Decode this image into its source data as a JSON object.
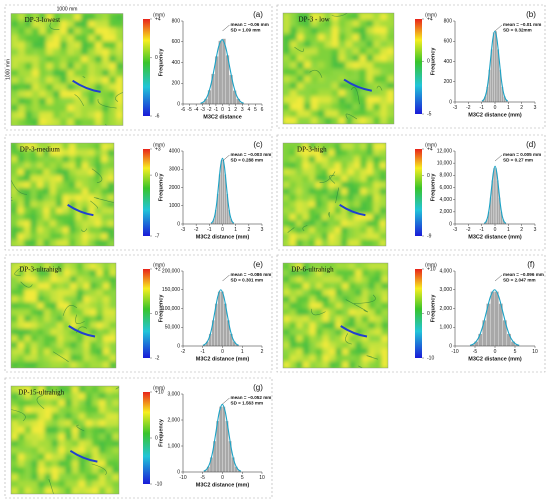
{
  "chart_data": [
    {
      "type": "histogram",
      "panel_label": "(a)",
      "map_label": "DP-3-lowest",
      "map_width_label": "1000 mm",
      "map_height_label": "1000 mm",
      "colorbar_unit": "(mm)",
      "colorbar_ticks": [
        {
          "value": 4,
          "label": "+4"
        },
        0,
        -6
      ],
      "xlabel": "M3C2 distance",
      "ylabel": "Frequency",
      "annotations": [
        "mean = −0.06 mm",
        "SD = 1.09 mm"
      ],
      "bins": [
        -3.33,
        -2.78,
        -2.24,
        -1.7,
        -1.15,
        -0.61,
        -0.06,
        0.49,
        1.03,
        1.58,
        2.12,
        2.67,
        3.21
      ],
      "counts": [
        14,
        50,
        134,
        290,
        460,
        610,
        630,
        470,
        280,
        130,
        50,
        14
      ],
      "fit": {
        "x": [
          -3.33,
          -2.78,
          -2.24,
          -1.7,
          -1.15,
          -0.61,
          -0.06,
          0.49,
          1.03,
          1.58,
          2.12,
          2.67,
          3.21
        ],
        "values": [
          7,
          27,
          84,
          202,
          376,
          547,
          620,
          547,
          376,
          202,
          84,
          27,
          7
        ]
      },
      "xlim": [
        -6,
        6
      ],
      "xticks": [
        -6,
        -5,
        -4,
        -3,
        -2,
        -1,
        0,
        1,
        2,
        3,
        4,
        5,
        6
      ],
      "ylim": [
        0,
        800
      ],
      "yticks": [
        0,
        200,
        400,
        600,
        800
      ],
      "color": "#a8a8a8",
      "fit_color": "#1ba3c6"
    },
    {
      "type": "histogram",
      "panel_label": "(b)",
      "map_label": "DP-3 - low",
      "colorbar_unit": "(mm)",
      "colorbar_ticks": [
        {
          "value": 4,
          "label": "+4"
        },
        0,
        -5
      ],
      "xlabel": "M3C2 distance (mm)",
      "ylabel": "Frequency",
      "annotations": [
        "mean = −0.01 mm",
        "SD = 0.32mm"
      ],
      "bins": [
        -0.97,
        -0.81,
        -0.65,
        -0.49,
        -0.33,
        -0.17,
        -0.01,
        0.15,
        0.31,
        0.47,
        0.63,
        0.79,
        0.95
      ],
      "counts": [
        16,
        56,
        151,
        320,
        520,
        690,
        700,
        520,
        320,
        150,
        56,
        16
      ],
      "fit": {
        "x": [
          -0.97,
          -0.81,
          -0.65,
          -0.49,
          -0.33,
          -0.17,
          -0.01,
          0.15,
          0.31,
          0.47,
          0.63,
          0.79,
          0.95
        ],
        "values": [
          8,
          31,
          95,
          228,
          425,
          617,
          700,
          617,
          425,
          228,
          95,
          31,
          8
        ]
      },
      "xlim": [
        -3,
        3
      ],
      "xticks": [
        -3,
        -2,
        -1,
        0,
        1,
        2,
        3
      ],
      "ylim": [
        0,
        800
      ],
      "yticks": [
        0,
        200,
        400,
        600,
        800
      ],
      "color": "#a8a8a8",
      "fit_color": "#1ba3c6"
    },
    {
      "type": "histogram",
      "panel_label": "(c)",
      "map_label": "DP-3-medium",
      "colorbar_unit": "(mm)",
      "colorbar_ticks": [
        {
          "value": 3,
          "label": "+3"
        },
        0,
        -7
      ],
      "xlabel": "M3C2 distance (mm)",
      "ylabel": "Frequency",
      "annotations": [
        "mean = −0.003 mm",
        "SD = 0.288 mm"
      ],
      "bins": [
        -0.867,
        -0.723,
        -0.579,
        -0.435,
        -0.291,
        -0.147,
        -0.003,
        0.141,
        0.285,
        0.429,
        0.573,
        0.717,
        0.861
      ],
      "counts": [
        83,
        288,
        778,
        1649,
        2718,
        3488,
        3488,
        2718,
        1649,
        778,
        288,
        83
      ],
      "fit": {
        "x": [
          -0.867,
          -0.723,
          -0.579,
          -0.435,
          -0.291,
          -0.147,
          -0.003,
          0.141,
          0.285,
          0.429,
          0.573,
          0.717,
          0.861
        ],
        "values": [
          40,
          158,
          486,
          1170,
          2185,
          3175,
          3600,
          3175,
          2185,
          1170,
          486,
          158,
          40
        ]
      },
      "xlim": [
        -3,
        3
      ],
      "xticks": [
        -3,
        -2,
        -1,
        0,
        1,
        2,
        3
      ],
      "ylim": [
        0,
        4000
      ],
      "yticks": [
        0,
        1000,
        2000,
        3000,
        4000
      ],
      "color": "#a8a8a8",
      "fit_color": "#1ba3c6"
    },
    {
      "type": "histogram",
      "panel_label": "(d)",
      "map_label": "DP-3-high",
      "colorbar_unit": "(mm)",
      "colorbar_ticks": [
        {
          "value": 4,
          "label": "+4"
        },
        0,
        -9
      ],
      "xlabel": "M3C2 distance (mm)",
      "ylabel": "Frequency",
      "annotations": [
        "mean = 0.005 mm",
        "SD = 0.27 mm"
      ],
      "bins": [
        -0.805,
        -0.67,
        -0.535,
        -0.4,
        -0.265,
        -0.13,
        0.005,
        0.14,
        0.275,
        0.41,
        0.545,
        0.68,
        0.815
      ],
      "counts": [
        219,
        760,
        2052,
        4351,
        7173,
        9206,
        9206,
        7173,
        4351,
        2052,
        760,
        219
      ],
      "fit": {
        "x": [
          -0.805,
          -0.67,
          -0.535,
          -0.4,
          -0.265,
          -0.13,
          0.005,
          0.14,
          0.275,
          0.41,
          0.545,
          0.68,
          0.815
        ],
        "values": [
          105,
          418,
          1283,
          3088,
          5767,
          8379,
          9500,
          8379,
          5767,
          3088,
          1283,
          418,
          105
        ]
      },
      "xlim": [
        -3,
        3
      ],
      "xticks": [
        -3,
        -2,
        -1,
        0,
        1,
        2,
        3
      ],
      "ylim": [
        0,
        12000
      ],
      "yticks": [
        0,
        {
          "value": 2000,
          "label": "2,000"
        },
        {
          "value": 4000,
          "label": "4,000"
        },
        {
          "value": 6000,
          "label": "6,000"
        },
        {
          "value": 8000,
          "label": "8,000"
        },
        {
          "value": 10000,
          "label": "10,000"
        },
        {
          "value": 12000,
          "label": "12,000"
        }
      ],
      "color": "#a8a8a8",
      "fit_color": "#1ba3c6"
    },
    {
      "type": "histogram",
      "panel_label": "(e)",
      "map_label": "DP-3-ultrahigh",
      "colorbar_unit": "(mm)",
      "colorbar_ticks": [
        {
          "value": 2,
          "label": "+2"
        },
        0,
        -2
      ],
      "xlabel": "M3C2 distance (mm)",
      "ylabel": "Frequency",
      "annotations": [
        "mean = −0.086 mm",
        "SD = 0.301 mm"
      ],
      "bins": [
        -0.989,
        -0.839,
        -0.688,
        -0.538,
        -0.387,
        -0.237,
        -0.086,
        0.065,
        0.215,
        0.366,
        0.516,
        0.667,
        0.817
      ],
      "counts": [
        3450,
        12000,
        32400,
        68700,
        113250,
        145350,
        145350,
        113250,
        68700,
        32400,
        12000,
        3450
      ],
      "fit": {
        "x": [
          -0.989,
          -0.839,
          -0.688,
          -0.538,
          -0.387,
          -0.237,
          -0.086,
          0.065,
          0.215,
          0.366,
          0.516,
          0.667,
          0.817
        ],
        "values": [
          1650,
          6600,
          20250,
          48750,
          91050,
          132300,
          150000,
          132300,
          91050,
          48750,
          20250,
          6600,
          1650
        ]
      },
      "xlim": [
        -2,
        2
      ],
      "xticks": [
        -2,
        -1,
        0,
        1,
        2
      ],
      "ylim": [
        0,
        200000
      ],
      "yticks": [
        0,
        {
          "value": 50000,
          "label": "50,000"
        },
        {
          "value": 100000,
          "label": "100,000"
        },
        {
          "value": 150000,
          "label": "150,000"
        },
        {
          "value": 200000,
          "label": "200,000"
        }
      ],
      "color": "#a8a8a8",
      "fit_color": "#1ba3c6"
    },
    {
      "type": "histogram",
      "panel_label": "(f)",
      "map_label": "DP-6-ultrahigh",
      "colorbar_unit": "(mm)",
      "colorbar_ticks": [
        {
          "value": 10,
          "label": "+10"
        },
        0,
        -10
      ],
      "xlabel": "M3C2 distance (mm)",
      "ylabel": "Frequency",
      "annotations": [
        "mean = −0.096 mm",
        "SD = 2.047 mm"
      ],
      "bins": [
        -6.237,
        -5.214,
        -4.19,
        -3.167,
        -2.144,
        -1.12,
        -0.096,
        0.928,
        1.951,
        2.975,
        3.998,
        5.022,
        6.045
      ],
      "counts": [
        69,
        240,
        648,
        1374,
        2265,
        2907,
        2907,
        2265,
        1374,
        648,
        240,
        69
      ],
      "fit": {
        "x": [
          -6.237,
          -5.214,
          -4.19,
          -3.167,
          -2.144,
          -1.12,
          -0.096,
          0.928,
          1.951,
          2.975,
          3.998,
          5.022,
          6.045
        ],
        "values": [
          33,
          132,
          405,
          975,
          1821,
          2646,
          3000,
          2646,
          1821,
          975,
          405,
          132,
          33
        ]
      },
      "xlim": [
        -10,
        10
      ],
      "xticks": [
        -10,
        -5,
        0,
        5,
        10
      ],
      "ylim": [
        0,
        4000
      ],
      "yticks": [
        0,
        {
          "value": 1000,
          "label": "1,000"
        },
        {
          "value": 2000,
          "label": "2,000"
        },
        {
          "value": 3000,
          "label": "3,000"
        },
        {
          "value": 4000,
          "label": "4,000"
        }
      ],
      "color": "#a8a8a8",
      "fit_color": "#1ba3c6"
    },
    {
      "type": "histogram",
      "panel_label": "(g)",
      "map_label": "DP-15-ultrahigh",
      "colorbar_unit": "(mm)",
      "colorbar_ticks": [
        {
          "value": 10,
          "label": "+10"
        },
        0,
        -10
      ],
      "xlabel": "M3C2 distance (mm)",
      "ylabel": "Frequency",
      "annotations": [
        "mean = −0.052 mm",
        "SD = 1.563 mm"
      ],
      "bins": [
        -4.741,
        -3.96,
        -3.178,
        -2.397,
        -1.615,
        -0.834,
        -0.052,
        0.73,
        1.511,
        2.293,
        3.074,
        3.856,
        4.637
      ],
      "counts": [
        60,
        208,
        562,
        1191,
        1963,
        2519,
        2519,
        1963,
        1191,
        562,
        208,
        60
      ],
      "fit": {
        "x": [
          -4.741,
          -3.96,
          -3.178,
          -2.397,
          -1.615,
          -0.834,
          -0.052,
          0.73,
          1.511,
          2.293,
          3.074,
          3.856,
          4.637
        ],
        "values": [
          29,
          114,
          351,
          845,
          1578,
          2293,
          2600,
          2293,
          1578,
          845,
          351,
          114,
          29
        ]
      },
      "xlim": [
        -10,
        10
      ],
      "xticks": [
        -10,
        -5,
        0,
        5,
        10
      ],
      "ylim": [
        0,
        3000
      ],
      "yticks": [
        0,
        {
          "value": 1000,
          "label": "1,000"
        },
        {
          "value": 2000,
          "label": "2,000"
        },
        {
          "value": 3000,
          "label": "3,000"
        }
      ],
      "color": "#a8a8a8",
      "fit_color": "#1ba3c6"
    }
  ]
}
